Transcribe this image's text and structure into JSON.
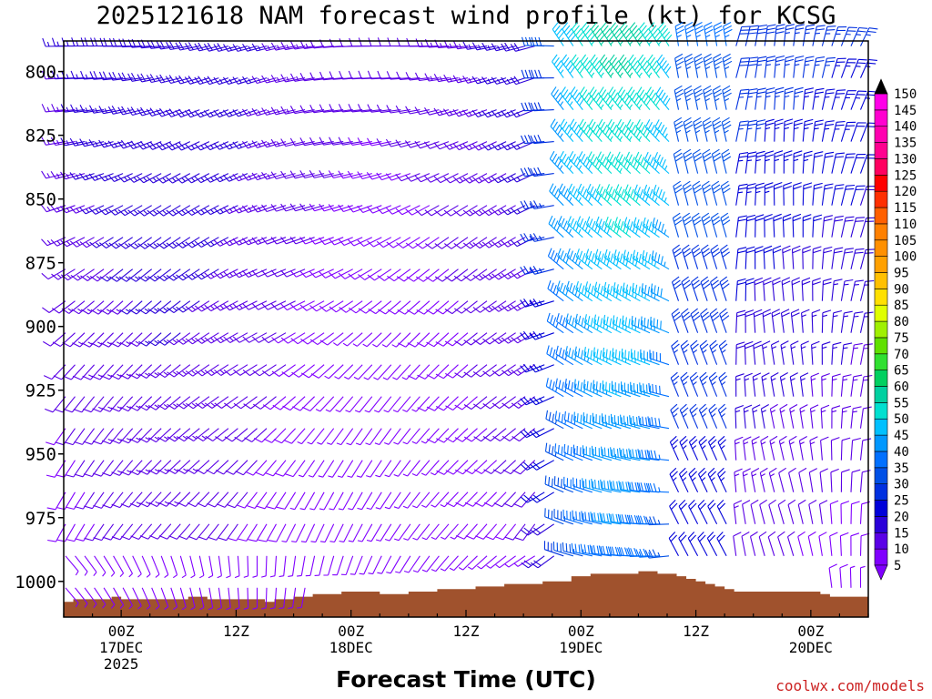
{
  "chart_data": {
    "type": "wind-barb-profile",
    "title": "2025121618 NAM forecast wind profile (kt) for KCSG",
    "xlabel": "Forecast Time (UTC)",
    "source": "coolwx.com/models",
    "y_axis": {
      "label": "",
      "ticks": [
        800,
        825,
        850,
        875,
        900,
        925,
        950,
        975,
        1000
      ],
      "range": [
        788,
        1014
      ]
    },
    "x_axis": {
      "ticks": [
        {
          "hour": 6,
          "lines": [
            "00Z",
            "17DEC",
            "2025"
          ]
        },
        {
          "hour": 18,
          "lines": [
            "12Z",
            "",
            ""
          ]
        },
        {
          "hour": 30,
          "lines": [
            "00Z",
            "18DEC",
            ""
          ]
        },
        {
          "hour": 42,
          "lines": [
            "12Z",
            "",
            ""
          ]
        },
        {
          "hour": 54,
          "lines": [
            "00Z",
            "19DEC",
            ""
          ]
        },
        {
          "hour": 66,
          "lines": [
            "12Z",
            "",
            ""
          ]
        },
        {
          "hour": 78,
          "lines": [
            "00Z",
            "20DEC",
            ""
          ]
        }
      ],
      "range": [
        0,
        84
      ]
    },
    "colorbar": {
      "unit": "kt",
      "levels": [
        5,
        10,
        15,
        20,
        25,
        30,
        35,
        40,
        45,
        50,
        55,
        60,
        65,
        70,
        75,
        80,
        85,
        90,
        95,
        100,
        105,
        110,
        115,
        120,
        125,
        130,
        135,
        140,
        145,
        150
      ],
      "colors": [
        "#8000ff",
        "#5a00e6",
        "#2a00d9",
        "#0000d9",
        "#0030e0",
        "#0050e6",
        "#0070ff",
        "#0098ff",
        "#00c0ff",
        "#00e0d0",
        "#00d0a0",
        "#00d060",
        "#30e030",
        "#60e000",
        "#a0f000",
        "#e0ff00",
        "#ffe000",
        "#ffc000",
        "#ffa000",
        "#ff9000",
        "#ff8000",
        "#ff6000",
        "#ff3000",
        "#ff0000",
        "#ff0060",
        "#ff0090",
        "#ff00b0",
        "#ff00d0",
        "#ff00e8",
        "#000000"
      ]
    },
    "terrain": {
      "color": "#a0522d",
      "surface_pressure": [
        [
          0,
          1008
        ],
        [
          1,
          1007
        ],
        [
          4,
          1007
        ],
        [
          5,
          1006
        ],
        [
          6,
          1007
        ],
        [
          12,
          1007
        ],
        [
          13,
          1006
        ],
        [
          15,
          1007
        ],
        [
          20,
          1007
        ],
        [
          21,
          1008
        ],
        [
          22,
          1007
        ],
        [
          24,
          1006
        ],
        [
          26,
          1005
        ],
        [
          29,
          1004
        ],
        [
          33,
          1005
        ],
        [
          36,
          1004
        ],
        [
          39,
          1003
        ],
        [
          42,
          1003
        ],
        [
          43,
          1002
        ],
        [
          46,
          1001
        ],
        [
          50,
          1000
        ],
        [
          53,
          998
        ],
        [
          54,
          998
        ],
        [
          55,
          997
        ],
        [
          59,
          997
        ],
        [
          60,
          996
        ],
        [
          62,
          997
        ],
        [
          64,
          998
        ],
        [
          65,
          999
        ],
        [
          66,
          1000
        ],
        [
          67,
          1001
        ],
        [
          68,
          1002
        ],
        [
          69,
          1003
        ],
        [
          70,
          1004
        ],
        [
          73,
          1004
        ],
        [
          75,
          1004
        ],
        [
          79,
          1005
        ],
        [
          80,
          1006
        ],
        [
          84,
          1006
        ]
      ]
    }
  }
}
